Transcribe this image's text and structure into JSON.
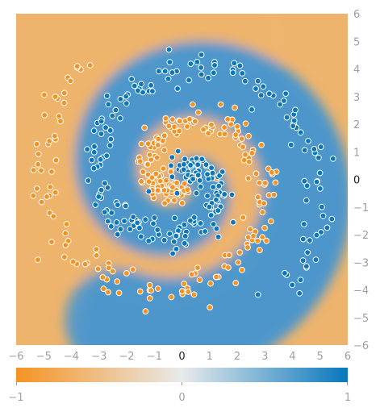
{
  "chart_data": {
    "type": "scatter",
    "title": "",
    "xlabel": "",
    "ylabel": "",
    "xlim": [
      -6,
      6
    ],
    "ylim": [
      -6,
      6
    ],
    "x_ticks": [
      "−6",
      "−5",
      "−4",
      "−3",
      "−2",
      "−1",
      "0",
      "1",
      "2",
      "3",
      "4",
      "5",
      "6"
    ],
    "y_ticks": [
      "6",
      "5",
      "4",
      "3",
      "2",
      "1",
      "0",
      "−1",
      "−2",
      "−3",
      "−4",
      "−5",
      "−6"
    ],
    "colorbar": {
      "min_label": "−1",
      "mid_label": "0",
      "max_label": "1",
      "range": [
        -1,
        1
      ]
    },
    "colors": {
      "negative": "#f59322",
      "neutral": "#e8eaeb",
      "positive": "#0877bd",
      "bg_negative": "#eeb46d",
      "bg_positive": "#4f98cc"
    },
    "series": [
      {
        "class": "orange",
        "value": -1,
        "spiral_arm_start_angle_rad": 3.14159,
        "radius_range": [
          0.1,
          5.5
        ]
      },
      {
        "class": "blue",
        "value": 1,
        "spiral_arm_start_angle_rad": 0,
        "radius_range": [
          0.1,
          5.5
        ]
      }
    ],
    "points_per_class": 250,
    "background": "decision-surface"
  }
}
